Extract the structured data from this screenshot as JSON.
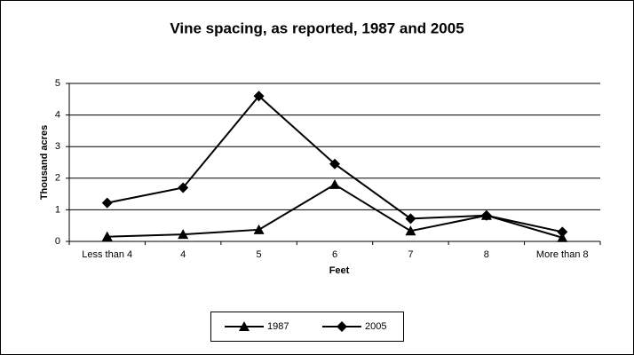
{
  "chart_data": {
    "type": "line",
    "title": "Vine spacing, as reported, 1987 and 2005",
    "x_label": "Feet",
    "y_label": "Thousand acres",
    "categories": [
      "Less than 4",
      "4",
      "5",
      "6",
      "7",
      "8",
      "More than 8"
    ],
    "series": [
      {
        "name": "1987",
        "color": "#000000",
        "marker": "triangle",
        "values": [
          0.15,
          0.22,
          0.37,
          1.8,
          0.33,
          0.82,
          0.12
        ]
      },
      {
        "name": "2005",
        "color": "#000000",
        "marker": "diamond",
        "values": [
          1.22,
          1.7,
          4.6,
          2.45,
          0.72,
          0.82,
          0.3
        ]
      }
    ],
    "ylim": [
      0,
      5
    ],
    "yticks": [
      0,
      1,
      2,
      3,
      4,
      5
    ],
    "grid": true,
    "legend": "bottom"
  }
}
